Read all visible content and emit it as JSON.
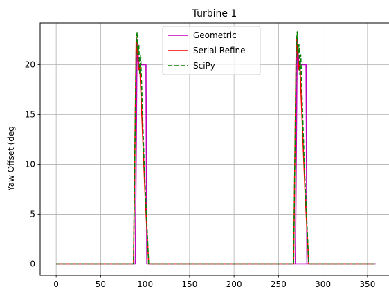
{
  "chart_data": {
    "type": "line",
    "title": "Turbine 1",
    "xlabel": "",
    "ylabel": "Yaw Offset (deg",
    "xlim": [
      -18,
      375
    ],
    "ylim": [
      -1.15,
      24.2
    ],
    "xticks": [
      0,
      50,
      100,
      150,
      200,
      250,
      300,
      350
    ],
    "yticks": [
      0,
      5,
      10,
      15,
      20
    ],
    "grid": true,
    "legend_position": "top-center",
    "series": [
      {
        "name": "Geometric",
        "color": "#bf00bf",
        "dash": "solid",
        "x": [
          0,
          89,
          91,
          93,
          100,
          101,
          102,
          103,
          104,
          105,
          357,
          358,
          359,
          268,
          269,
          271,
          273,
          280,
          281,
          282,
          283,
          284,
          285
        ],
        "y": [
          0,
          0,
          22.5,
          20,
          20,
          20,
          0,
          0,
          0,
          0,
          0,
          0,
          0,
          0,
          0,
          22.5,
          20,
          20,
          20,
          0,
          0,
          0,
          0
        ]
      },
      {
        "name": "Serial Refine",
        "color": "#ff0000",
        "dash": "solid",
        "x": [
          0,
          87,
          90,
          92,
          93,
          94,
          100,
          104,
          105,
          267,
          270,
          272,
          273,
          274,
          280,
          284,
          285,
          358
        ],
        "y": [
          0,
          0,
          22.7,
          20.5,
          19.5,
          20,
          7,
          0,
          0,
          0,
          22.7,
          20.5,
          19.5,
          20,
          7,
          0,
          0,
          0
        ]
      },
      {
        "name": "SciPy",
        "color": "#008000",
        "dash": "dashed",
        "x": [
          0,
          87,
          90,
          91,
          92,
          93,
          94,
          95,
          99,
          104,
          105,
          267,
          270,
          271,
          272,
          273,
          274,
          275,
          279,
          284,
          285,
          358
        ],
        "y": [
          0,
          0,
          22,
          23.3,
          21,
          22,
          19,
          21,
          10,
          0,
          0,
          0,
          22,
          23.3,
          21,
          22,
          19,
          21,
          10,
          0,
          0,
          0
        ]
      }
    ]
  }
}
